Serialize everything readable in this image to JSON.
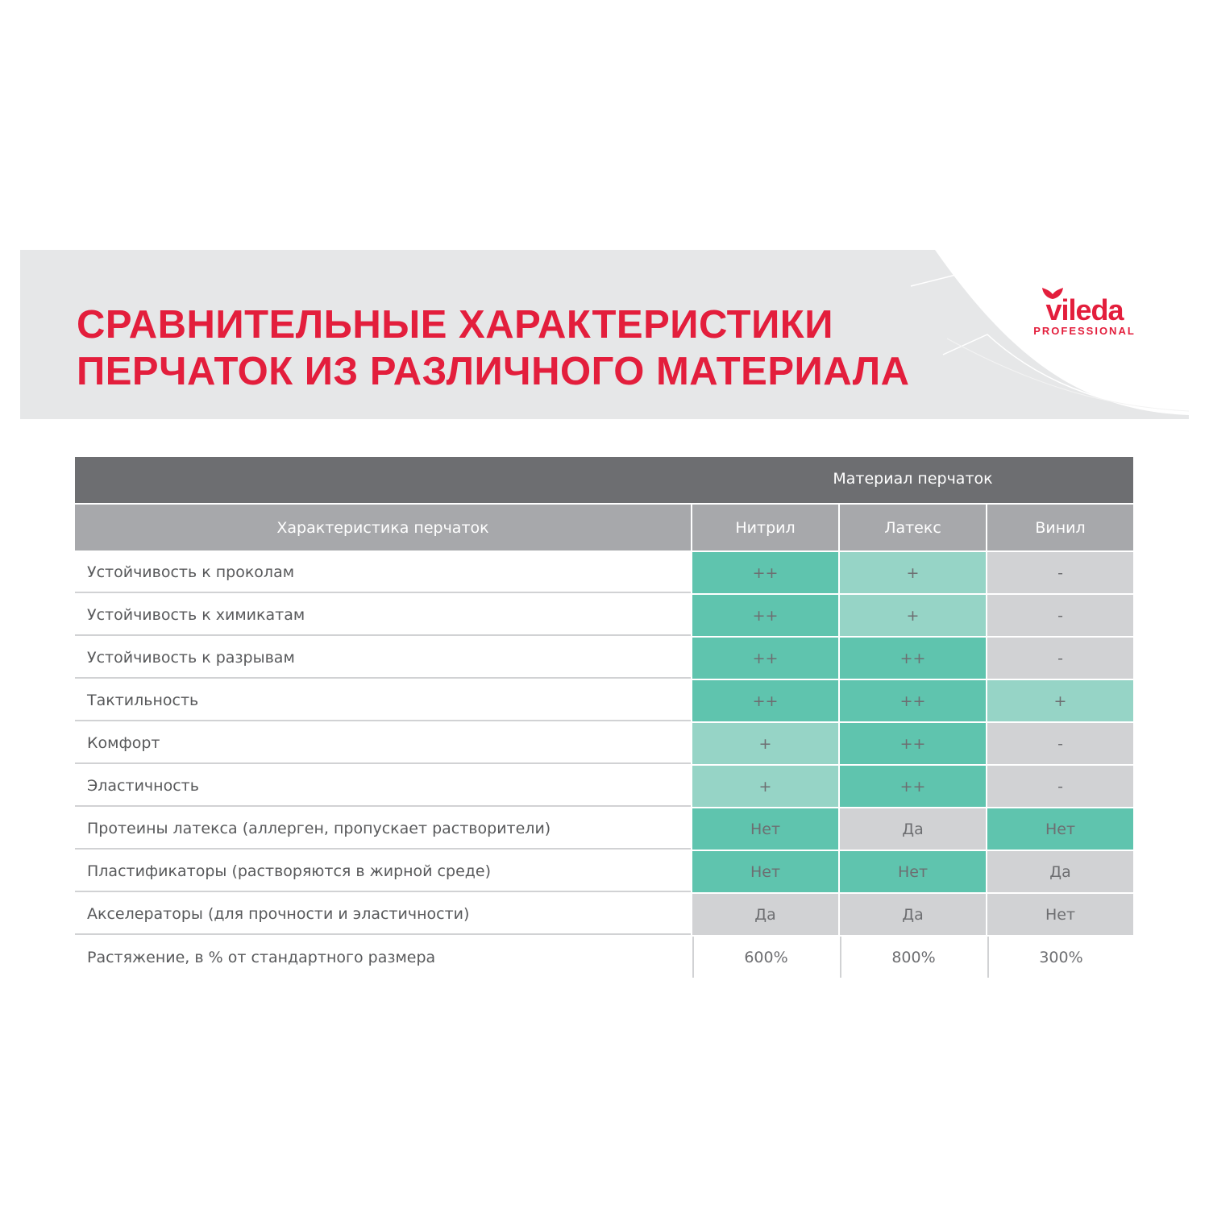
{
  "title": {
    "line1": "СРАВНИТЕЛЬНЫЕ ХАРАКТЕРИСТИКИ",
    "line2": "ПЕРЧАТОК ИЗ РАЗЛИЧНОГО МАТЕРИАЛА"
  },
  "logo": {
    "word": "vileda",
    "sub": "PROFESSIONAL"
  },
  "colors": {
    "brand": "#e31e3c",
    "strong": "#5fc4ae",
    "light": "#96d4c6",
    "none": "#d1d2d4",
    "header_dark": "#6d6e71",
    "header_light": "#a7a8ab"
  },
  "table": {
    "group_header": "Материал перчаток",
    "columns": [
      "Характеристика перчаток",
      "Нитрил",
      "Латекс",
      "Винил"
    ],
    "rows": [
      {
        "label": "Устойчивость к проколам",
        "cells": [
          {
            "v": "++",
            "tone": "strong"
          },
          {
            "v": "+",
            "tone": "light"
          },
          {
            "v": "-",
            "tone": "none"
          }
        ]
      },
      {
        "label": "Устойчивость к химикатам",
        "cells": [
          {
            "v": "++",
            "tone": "strong"
          },
          {
            "v": "+",
            "tone": "light"
          },
          {
            "v": "-",
            "tone": "none"
          }
        ]
      },
      {
        "label": "Устойчивость к разрывам",
        "cells": [
          {
            "v": "++",
            "tone": "strong"
          },
          {
            "v": "++",
            "tone": "strong"
          },
          {
            "v": "-",
            "tone": "none"
          }
        ]
      },
      {
        "label": "Тактильность",
        "cells": [
          {
            "v": "++",
            "tone": "strong"
          },
          {
            "v": "++",
            "tone": "strong"
          },
          {
            "v": "+",
            "tone": "light"
          }
        ]
      },
      {
        "label": "Комфорт",
        "cells": [
          {
            "v": "+",
            "tone": "light"
          },
          {
            "v": "++",
            "tone": "strong"
          },
          {
            "v": "-",
            "tone": "none"
          }
        ]
      },
      {
        "label": "Эластичность",
        "cells": [
          {
            "v": "+",
            "tone": "light"
          },
          {
            "v": "++",
            "tone": "strong"
          },
          {
            "v": "-",
            "tone": "none"
          }
        ]
      },
      {
        "label": "Протеины латекса (аллерген, пропускает растворители)",
        "cells": [
          {
            "v": "Нет",
            "tone": "strong"
          },
          {
            "v": "Да",
            "tone": "none"
          },
          {
            "v": "Нет",
            "tone": "strong"
          }
        ]
      },
      {
        "label": "Пластификаторы (растворяются в жирной среде)",
        "cells": [
          {
            "v": "Нет",
            "tone": "strong"
          },
          {
            "v": "Нет",
            "tone": "strong"
          },
          {
            "v": "Да",
            "tone": "none"
          }
        ]
      },
      {
        "label": "Акселераторы (для прочности и эластичности)",
        "cells": [
          {
            "v": "Да",
            "tone": "none"
          },
          {
            "v": "Да",
            "tone": "none"
          },
          {
            "v": "Нет",
            "tone": "none"
          }
        ]
      },
      {
        "label": "Растяжение, в % от стандартного размера",
        "cells": [
          {
            "v": "600%",
            "tone": "plain"
          },
          {
            "v": "800%",
            "tone": "plain"
          },
          {
            "v": "300%",
            "tone": "plain"
          }
        ]
      }
    ]
  }
}
